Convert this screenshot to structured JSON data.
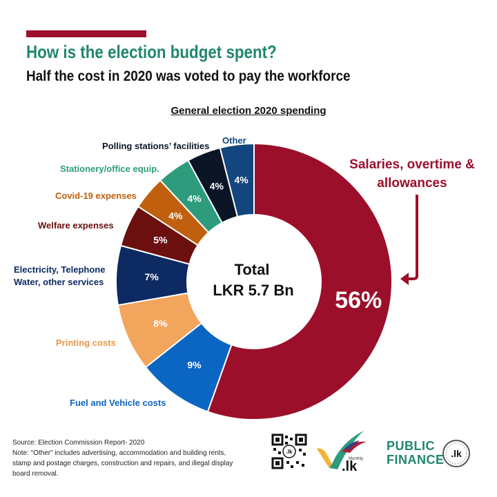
{
  "header": {
    "title": "How is the election budget spent?",
    "subtitle": "Half the cost in 2020 was voted to pay the workforce"
  },
  "chart_data": {
    "type": "pie",
    "title": "General election 2020 spending",
    "center_label": [
      "Total",
      "LKR 5.7 Bn"
    ],
    "start_angle_deg": 0,
    "direction": "clockwise",
    "slices": [
      {
        "label": "Salaries, overtime & allowances",
        "value": 56,
        "display": "56%",
        "color": "#9b0f2a"
      },
      {
        "label": "Fuel and Vehicle costs",
        "value": 9,
        "display": "9%",
        "color": "#0b66c3"
      },
      {
        "label": "Printing costs",
        "value": 8,
        "display": "8%",
        "color": "#f2a55c"
      },
      {
        "label": "Electricity, Telephone Water, other services",
        "value": 7,
        "display": "7%",
        "color": "#0d2a63"
      },
      {
        "label": "Welfare expenses",
        "value": 5,
        "display": "5%",
        "color": "#6b0f0f"
      },
      {
        "label": "Covid-19 expenses",
        "value": 4,
        "display": "4%",
        "color": "#c0600e"
      },
      {
        "label": "Stationery/office equip.",
        "value": 4,
        "display": "4%",
        "color": "#2e9b7c"
      },
      {
        "label": "Polling stations' facilities",
        "value": 4,
        "display": "4%",
        "color": "#0b1526"
      },
      {
        "label": "Other",
        "value": 4,
        "display": "4%",
        "color": "#13467e"
      }
    ]
  },
  "callout": {
    "line1": "Salaries, overtime &",
    "line2": "allowances"
  },
  "labels": {
    "fuel": "Fuel and Vehicle costs",
    "printing": "Printing costs",
    "elec_1": "Electricity, Telephone",
    "elec_2": "Water, other services",
    "welfare": "Welfare expenses",
    "covid": "Covid-19 expenses",
    "stationery": "Stationery/office equip.",
    "polling": "Polling stations’ facilities",
    "other": "Other"
  },
  "footer": {
    "source": "Source: Election Commission Report- 2020",
    "note": "Note:  \"Other\" includes advertising, accommodation and building rents, stamp and postage charges, construction and repairs, and illegal display board removal."
  },
  "logos": {
    "monthly": "Monthly",
    "lk": ".lk",
    "public": "PUBLIC",
    "finance": "FINANCE",
    "pf_lk": ".lk"
  }
}
